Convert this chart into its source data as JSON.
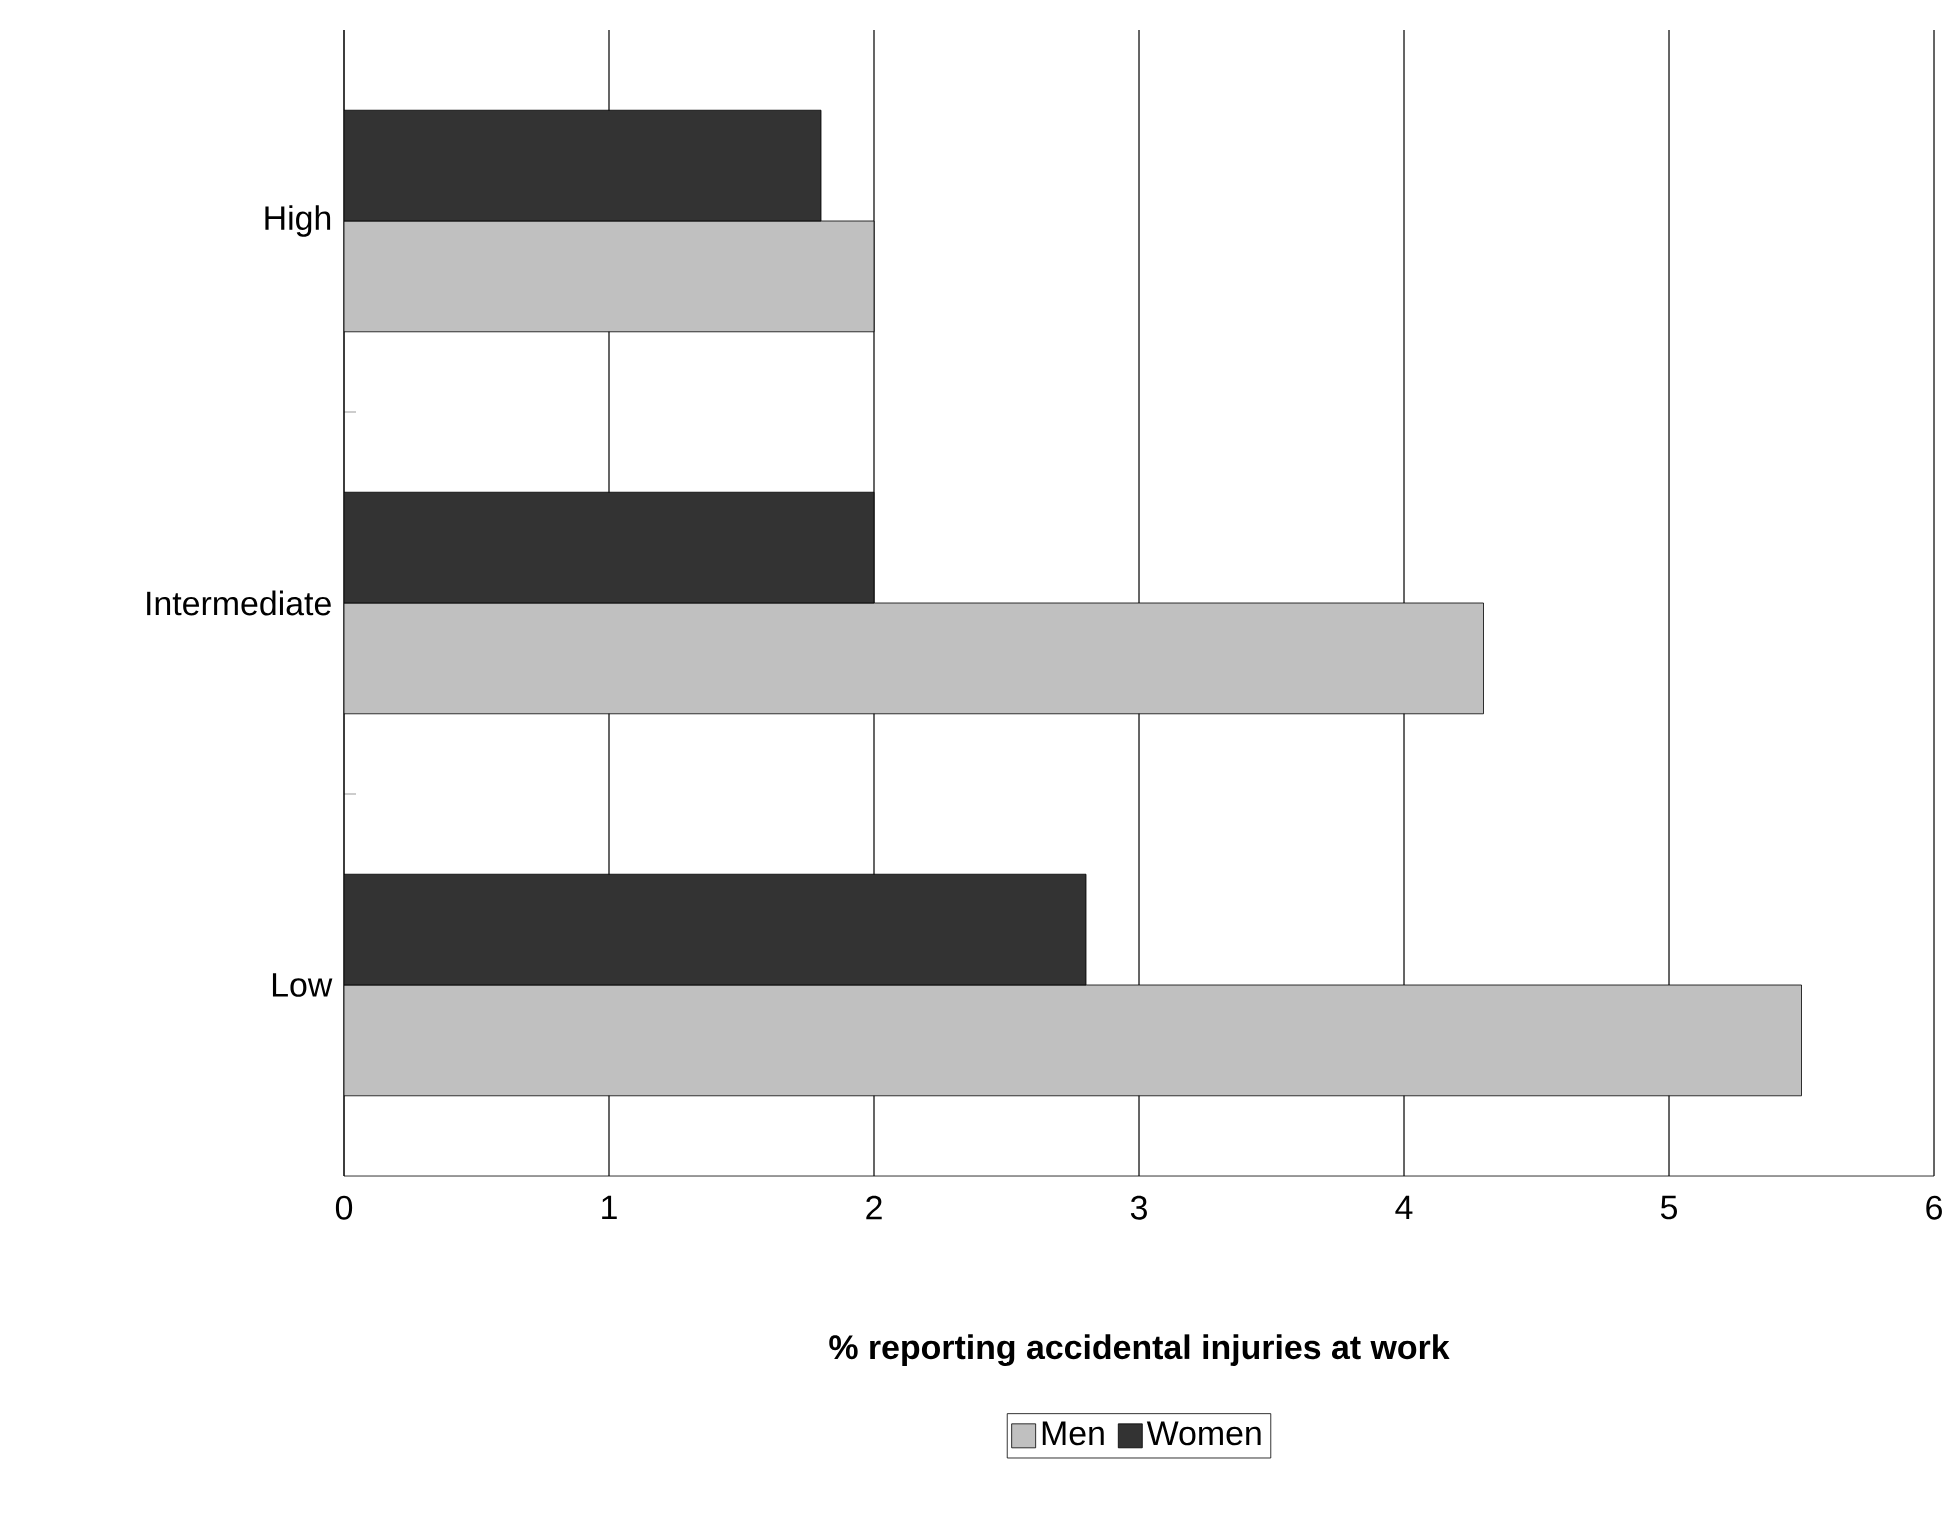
{
  "chart_data": {
    "type": "bar",
    "orientation": "horizontal",
    "categories": [
      "High",
      "Intermediate",
      "Low"
    ],
    "series": [
      {
        "name": "Men",
        "color": "#c0c0c0",
        "values": [
          2.0,
          4.3,
          5.5
        ]
      },
      {
        "name": "Women",
        "color": "#333333",
        "values": [
          1.8,
          2.0,
          2.8
        ]
      }
    ],
    "xlim": [
      0,
      6
    ],
    "xticks": [
      0,
      1,
      2,
      3,
      4,
      5,
      6
    ],
    "xlabel": "% reporting accidental injuries at work",
    "grid": "x",
    "legend": "bottom"
  }
}
